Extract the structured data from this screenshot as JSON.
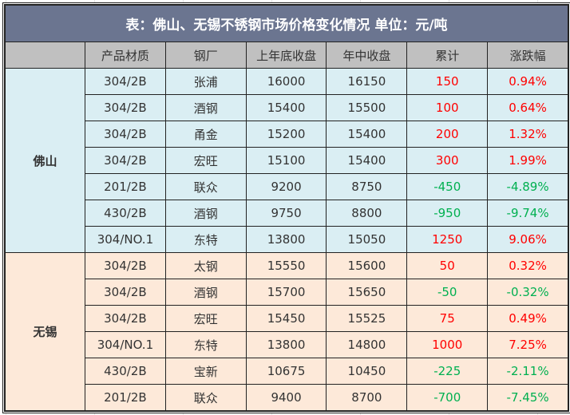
{
  "title": "表：佛山、无锡不锈钢市场价格变化情况   单位：元/吨",
  "headers": [
    "",
    "产品材质",
    "钢厂",
    "上年底收盘",
    "年中收盘",
    "累计",
    "涨跌幅"
  ],
  "colors": {
    "title_bg": "#6b7590",
    "header_bg": "#c0c0c0",
    "foshan_bg": "#daeef3",
    "wuxi_bg": "#fde9d9",
    "rise": "#ff0000",
    "fall": "#00b050"
  },
  "groups": [
    {
      "region": "佛山",
      "theme": "fs",
      "rows": [
        [
          "304/2B",
          "张浦",
          "16000",
          "16150",
          "150",
          "0.94%"
        ],
        [
          "304/2B",
          "酒钢",
          "15400",
          "15500",
          "100",
          "0.64%"
        ],
        [
          "304/2B",
          "甬金",
          "15200",
          "15400",
          "200",
          "1.32%"
        ],
        [
          "304/2B",
          "宏旺",
          "15100",
          "15400",
          "300",
          "1.99%"
        ],
        [
          "201/2B",
          "联众",
          "9200",
          "8750",
          "-450",
          "-4.89%"
        ],
        [
          "430/2B",
          "酒钢",
          "9750",
          "8800",
          "-950",
          "-9.74%"
        ],
        [
          "304/NO.1",
          "东特",
          "13800",
          "15050",
          "1250",
          "9.06%"
        ]
      ]
    },
    {
      "region": "无锡",
      "theme": "wx",
      "rows": [
        [
          "304/2B",
          "太钢",
          "15550",
          "15600",
          "50",
          "0.32%"
        ],
        [
          "304/2B",
          "酒钢",
          "15700",
          "15650",
          "-50",
          "-0.32%"
        ],
        [
          "304/2B",
          "宏旺",
          "15450",
          "15525",
          "75",
          "0.49%"
        ],
        [
          "304/NO.1",
          "东特",
          "13800",
          "14800",
          "1000",
          "7.25%"
        ],
        [
          "430/2B",
          "宝新",
          "10675",
          "10450",
          "-225",
          "-2.11%"
        ],
        [
          "201/2B",
          "联众",
          "9400",
          "8700",
          "-700",
          "-7.45%"
        ]
      ]
    }
  ]
}
